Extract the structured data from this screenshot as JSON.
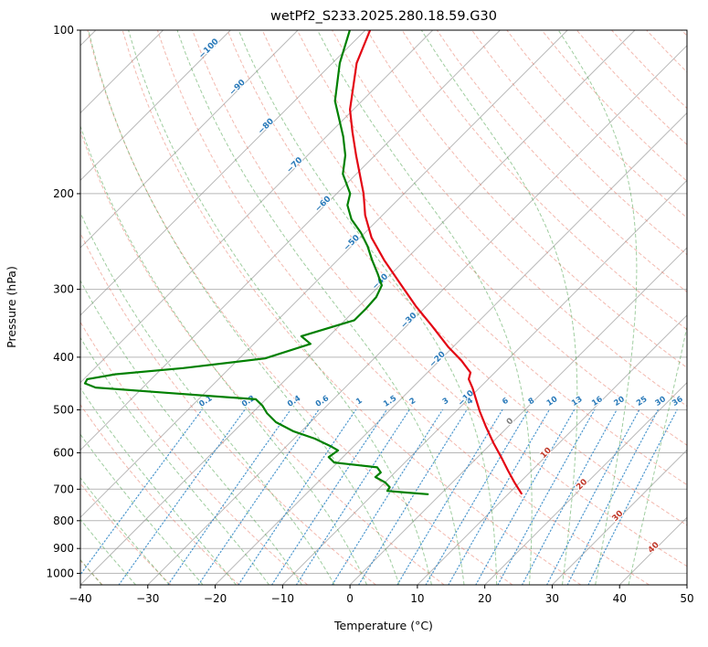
{
  "chart_data": {
    "type": "skewt-log-p",
    "title": "wetPf2_S233.2025.280.18.59.G30",
    "xlabel": "Temperature (°C)",
    "ylabel": "Pressure (hPa)",
    "x_range": [
      -40,
      50
    ],
    "p_range": [
      100,
      1050
    ],
    "x_ticks": [
      -40,
      -30,
      -20,
      -10,
      0,
      10,
      20,
      30,
      40,
      50
    ],
    "y_ticks": [
      100,
      200,
      300,
      400,
      500,
      600,
      700,
      800,
      900,
      1000
    ],
    "skew_degrees": 45,
    "isotherm_step_c": 10,
    "isotherm_labels_upper": [
      -100,
      -90,
      -80,
      -70,
      -60,
      -50,
      -40,
      -30,
      -20,
      -10
    ],
    "isotherm_labels_lower": [
      0,
      10,
      20,
      30,
      40
    ],
    "mixing_ratios_g_kg": [
      0.1,
      0.2,
      0.4,
      0.6,
      1,
      1.5,
      2,
      3,
      4,
      6,
      8,
      10,
      13,
      16,
      20,
      25,
      30,
      36
    ],
    "dry_adiabats": {
      "start": -40,
      "end": 190,
      "step": 10
    },
    "moist_adiabats": {
      "start": -40,
      "end": 40,
      "step": 5
    },
    "grid": true,
    "colors": {
      "grid": "#909090",
      "isotherm": "#8a8a8a",
      "dry_adiabat": "#e8735f",
      "moist_adiabat": "#3f9b3f",
      "mixing": "#2f86c6",
      "label_blue": "#2a7ab9",
      "label_red": "#c0392b",
      "label_gray": "#7f7f7f",
      "temperature": "#e30613",
      "dewpoint": "#008000"
    },
    "series": [
      {
        "name": "temperature",
        "color": "#e30613",
        "points_pressure_hpa_temp_c": [
          [
            100,
            -79.3
          ],
          [
            115,
            -76.4
          ],
          [
            140,
            -70.5
          ],
          [
            154,
            -66.8
          ],
          [
            170,
            -62.8
          ],
          [
            200,
            -56.0
          ],
          [
            219,
            -52.6
          ],
          [
            241,
            -48.3
          ],
          [
            265,
            -43.1
          ],
          [
            292,
            -37.4
          ],
          [
            322,
            -31.6
          ],
          [
            350,
            -26.3
          ],
          [
            383,
            -20.7
          ],
          [
            406,
            -16.7
          ],
          [
            427,
            -13.6
          ],
          [
            439,
            -12.9
          ],
          [
            456,
            -11.0
          ],
          [
            503,
            -6.5
          ],
          [
            537,
            -3.3
          ],
          [
            576,
            0.3
          ],
          [
            610,
            3.4
          ],
          [
            647,
            6.5
          ],
          [
            680,
            9.2
          ],
          [
            713,
            11.9
          ]
        ]
      },
      {
        "name": "dewpoint",
        "color": "#008000",
        "points_pressure_hpa_temp_c": [
          [
            100,
            -82.3
          ],
          [
            115,
            -78.9
          ],
          [
            135,
            -74.0
          ],
          [
            157,
            -67.5
          ],
          [
            170,
            -64.4
          ],
          [
            184,
            -62.0
          ],
          [
            200,
            -58.0
          ],
          [
            210,
            -56.7
          ],
          [
            223,
            -54.0
          ],
          [
            236,
            -50.6
          ],
          [
            250,
            -47.6
          ],
          [
            265,
            -44.9
          ],
          [
            281,
            -42.0
          ],
          [
            295,
            -39.7
          ],
          [
            310,
            -38.8
          ],
          [
            326,
            -38.6
          ],
          [
            342,
            -38.6
          ],
          [
            366,
            -44.1
          ],
          [
            378,
            -41.6
          ],
          [
            402,
            -46.2
          ],
          [
            419,
            -56.9
          ],
          [
            430,
            -66.0
          ],
          [
            439,
            -69.5
          ],
          [
            447,
            -69.2
          ],
          [
            455,
            -67.0
          ],
          [
            465,
            -56.0
          ],
          [
            478,
            -41.5
          ],
          [
            491,
            -39.6
          ],
          [
            507,
            -37.8
          ],
          [
            527,
            -35.1
          ],
          [
            548,
            -31.1
          ],
          [
            565,
            -26.9
          ],
          [
            583,
            -23.5
          ],
          [
            594,
            -21.7
          ],
          [
            611,
            -22.1
          ],
          [
            625,
            -20.5
          ],
          [
            638,
            -13.4
          ],
          [
            652,
            -12.1
          ],
          [
            665,
            -12.2
          ],
          [
            680,
            -10.0
          ],
          [
            694,
            -8.6
          ],
          [
            705,
            -8.4
          ],
          [
            710,
            -5.3
          ],
          [
            715,
            -1.9
          ]
        ]
      }
    ]
  }
}
